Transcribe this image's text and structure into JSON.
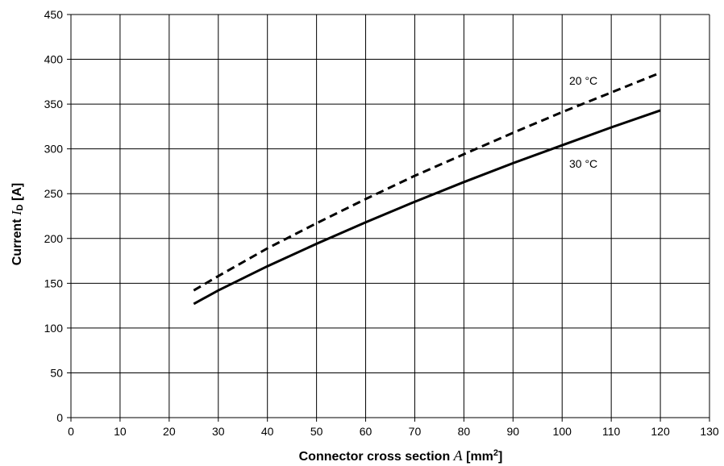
{
  "chart_data": {
    "type": "line",
    "x_axis": {
      "label_prefix": "Connector cross section ",
      "label_symbol": "A",
      "label_unit_open": " [mm",
      "label_unit_sup": "2",
      "label_unit_close": "]",
      "range": [
        0,
        130
      ],
      "ticks": [
        0,
        10,
        20,
        30,
        40,
        50,
        60,
        70,
        80,
        90,
        100,
        110,
        120,
        130
      ]
    },
    "y_axis": {
      "label_prefix": "Current ",
      "label_symbol": "I",
      "label_sub": "D",
      "label_unit": " [A]",
      "range": [
        0,
        450
      ],
      "ticks": [
        0,
        50,
        100,
        150,
        200,
        250,
        300,
        350,
        400,
        450
      ]
    },
    "grid": true,
    "series": [
      {
        "name": "20 °C",
        "style": "dashed",
        "color": "#000000",
        "points": [
          [
            25,
            142
          ],
          [
            30,
            158
          ],
          [
            40,
            189
          ],
          [
            50,
            217
          ],
          [
            60,
            244
          ],
          [
            70,
            270
          ],
          [
            80,
            294
          ],
          [
            90,
            318
          ],
          [
            100,
            341
          ],
          [
            110,
            363
          ],
          [
            120,
            385
          ]
        ]
      },
      {
        "name": "30 °C",
        "style": "solid",
        "color": "#000000",
        "points": [
          [
            25,
            127
          ],
          [
            30,
            142
          ],
          [
            40,
            169
          ],
          [
            50,
            194
          ],
          [
            60,
            218
          ],
          [
            70,
            241
          ],
          [
            80,
            263
          ],
          [
            90,
            284
          ],
          [
            100,
            304
          ],
          [
            110,
            324
          ],
          [
            120,
            343
          ]
        ]
      }
    ]
  }
}
